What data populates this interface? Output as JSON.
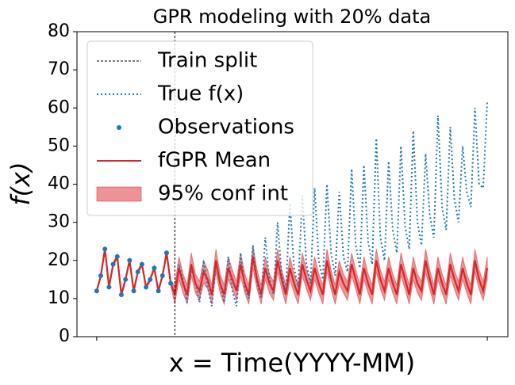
{
  "chart_data": {
    "type": "line",
    "title": "GPR modeling with 20% data",
    "x_label": "x = Time(YYYY-MM)",
    "y_label": "f(x)",
    "xlim": [
      -4.8,
      100
    ],
    "xticks": [
      0,
      95
    ],
    "ylim": [
      0,
      80
    ],
    "yticks": [
      0,
      10,
      20,
      30,
      40,
      50,
      60,
      70,
      80
    ],
    "grid": false,
    "legend": "upper left",
    "split": {
      "name": "Train split",
      "x": 19,
      "color": "#000000"
    },
    "series": [
      {
        "name": "True f(x)",
        "style": "dotted",
        "color": "#1f77b4",
        "x": [
          0,
          1,
          2,
          3,
          4,
          5,
          6,
          7,
          8,
          9,
          10,
          11,
          12,
          13,
          14,
          15,
          16,
          17,
          18,
          19,
          20,
          21,
          22,
          23,
          24,
          25,
          26,
          27,
          28,
          29,
          30,
          31,
          32,
          33,
          34,
          35,
          36,
          37,
          38,
          39,
          40,
          41,
          42,
          43,
          44,
          45,
          46,
          47,
          48,
          49,
          50,
          51,
          52,
          53,
          54,
          55,
          56,
          57,
          58,
          59,
          60,
          61,
          62,
          63,
          64,
          65,
          66,
          67,
          68,
          69,
          70,
          71,
          72,
          73,
          74,
          75,
          76,
          77,
          78,
          79,
          80,
          81,
          82,
          83,
          84,
          85,
          86,
          87,
          88,
          89,
          90,
          91,
          92,
          93,
          94,
          95
        ],
        "values": [
          12,
          16,
          23,
          13,
          19,
          21,
          11,
          15,
          20,
          12,
          17,
          19,
          13,
          15,
          18,
          12,
          16,
          22,
          14,
          11,
          19,
          15,
          9,
          18,
          14,
          9,
          20,
          13,
          8,
          19,
          14,
          9,
          21,
          12,
          8,
          22,
          13,
          10,
          24,
          14,
          10,
          26,
          15,
          11,
          30,
          16,
          12,
          35,
          18,
          13,
          37,
          19,
          14,
          39,
          20,
          15,
          40,
          22,
          16,
          38,
          21,
          17,
          44,
          24,
          18,
          45,
          25,
          19,
          52,
          26,
          20,
          46,
          28,
          22,
          50,
          29,
          23,
          54,
          30,
          24,
          48,
          32,
          26,
          58,
          34,
          28,
          55,
          36,
          30,
          50,
          38,
          34,
          60,
          40,
          39,
          62
        ]
      },
      {
        "name": "Observations",
        "style": "scatter",
        "color": "#1f77b4",
        "x": [
          0,
          1,
          2,
          3,
          4,
          5,
          6,
          7,
          8,
          9,
          10,
          11,
          12,
          13,
          14,
          15,
          16,
          17,
          18
        ],
        "values": [
          12,
          16,
          23,
          13,
          19,
          21,
          11,
          15,
          20,
          12,
          17,
          19,
          13,
          15,
          18,
          12,
          16,
          22,
          14
        ]
      },
      {
        "name": "fGPR Mean",
        "style": "solid",
        "color": "#d62728",
        "error_name": "95% conf int",
        "error_color": "#e8777d",
        "x": [
          0,
          1,
          2,
          3,
          4,
          5,
          6,
          7,
          8,
          9,
          10,
          11,
          12,
          13,
          14,
          15,
          16,
          17,
          18,
          19,
          20,
          21,
          22,
          23,
          24,
          25,
          26,
          27,
          28,
          29,
          30,
          31,
          32,
          33,
          34,
          35,
          36,
          37,
          38,
          39,
          40,
          41,
          42,
          43,
          44,
          45,
          46,
          47,
          48,
          49,
          50,
          51,
          52,
          53,
          54,
          55,
          56,
          57,
          58,
          59,
          60,
          61,
          62,
          63,
          64,
          65,
          66,
          67,
          68,
          69,
          70,
          71,
          72,
          73,
          74,
          75,
          76,
          77,
          78,
          79,
          80,
          81,
          82,
          83,
          84,
          85,
          86,
          87,
          88,
          89,
          90,
          91,
          92,
          93,
          94,
          95
        ],
        "values": [
          12,
          16,
          23,
          13,
          19,
          21,
          11,
          15,
          20,
          12,
          17,
          19,
          13,
          15,
          18,
          12,
          16,
          22,
          14,
          11,
          18,
          14,
          11,
          19,
          14,
          12,
          17,
          15,
          11,
          20,
          14,
          11,
          18,
          15,
          12,
          19,
          14,
          11,
          21,
          15,
          11,
          18,
          14,
          12,
          20,
          15,
          11,
          18,
          14,
          11,
          19,
          15,
          12,
          18,
          14,
          11,
          20,
          15,
          11,
          17,
          14,
          12,
          19,
          15,
          11,
          18,
          14,
          11,
          20,
          15,
          12,
          18,
          14,
          11,
          19,
          15,
          11,
          18,
          14,
          12,
          20,
          15,
          11,
          18,
          14,
          11,
          19,
          15,
          12,
          18,
          14,
          11,
          20,
          15,
          12,
          18
        ],
        "error": [
          0.5,
          0.5,
          0.5,
          0.5,
          0.5,
          0.5,
          0.5,
          0.5,
          0.5,
          0.5,
          0.5,
          0.5,
          0.5,
          0.5,
          0.5,
          0.5,
          0.5,
          0.5,
          0.5,
          2.5,
          3,
          2.5,
          2.5,
          3,
          2.5,
          2.5,
          3,
          2.5,
          2.5,
          3,
          2.5,
          2.5,
          3,
          2.5,
          2.5,
          3,
          2.5,
          2.5,
          3,
          2.5,
          2.5,
          3,
          2.5,
          2.5,
          3,
          2.5,
          2.5,
          3,
          2.5,
          2.5,
          3,
          2.5,
          2.5,
          3,
          2.5,
          2.5,
          3,
          2.5,
          2.5,
          3,
          2.5,
          2.5,
          3,
          2.5,
          2.5,
          3,
          2.5,
          2.5,
          3,
          2.5,
          2.5,
          3,
          2.5,
          2.5,
          3,
          2.5,
          2.5,
          3,
          2.5,
          2.5,
          3,
          2.5,
          2.5,
          3,
          2.5,
          2.5,
          3,
          2.5,
          2.5,
          3,
          2.5,
          2.5,
          3,
          2.5,
          2.5,
          3
        ]
      }
    ]
  }
}
